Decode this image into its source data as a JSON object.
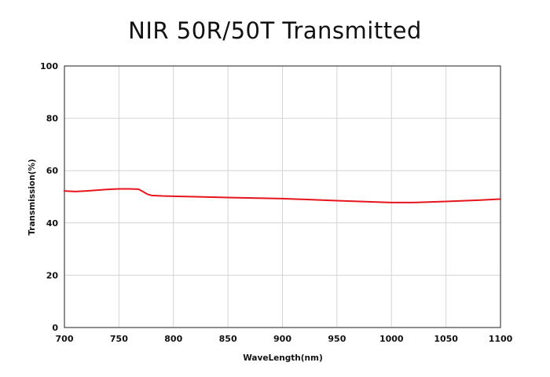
{
  "chart_data": {
    "type": "line",
    "title": "NIR 50R/50T Transmitted",
    "xlabel": "WaveLength(nm)",
    "ylabel": "Transmission(%)",
    "xlim": [
      700,
      1100
    ],
    "ylim": [
      0,
      100
    ],
    "xticks": [
      700,
      750,
      800,
      850,
      900,
      950,
      1000,
      1050,
      1100
    ],
    "yticks": [
      0,
      20,
      40,
      60,
      80,
      100
    ],
    "grid": true,
    "series": [
      {
        "color": "#e8141c",
        "x": [
          700,
          710,
          720,
          730,
          740,
          750,
          760,
          768,
          772,
          776,
          780,
          790,
          800,
          850,
          900,
          950,
          1000,
          1020,
          1050,
          1080,
          1100
        ],
        "y": [
          52.2,
          52.0,
          52.2,
          52.5,
          52.8,
          53.0,
          53.0,
          52.9,
          52.0,
          51.0,
          50.5,
          50.3,
          50.2,
          49.7,
          49.3,
          48.5,
          47.8,
          47.8,
          48.2,
          48.7,
          49.1
        ]
      }
    ]
  }
}
